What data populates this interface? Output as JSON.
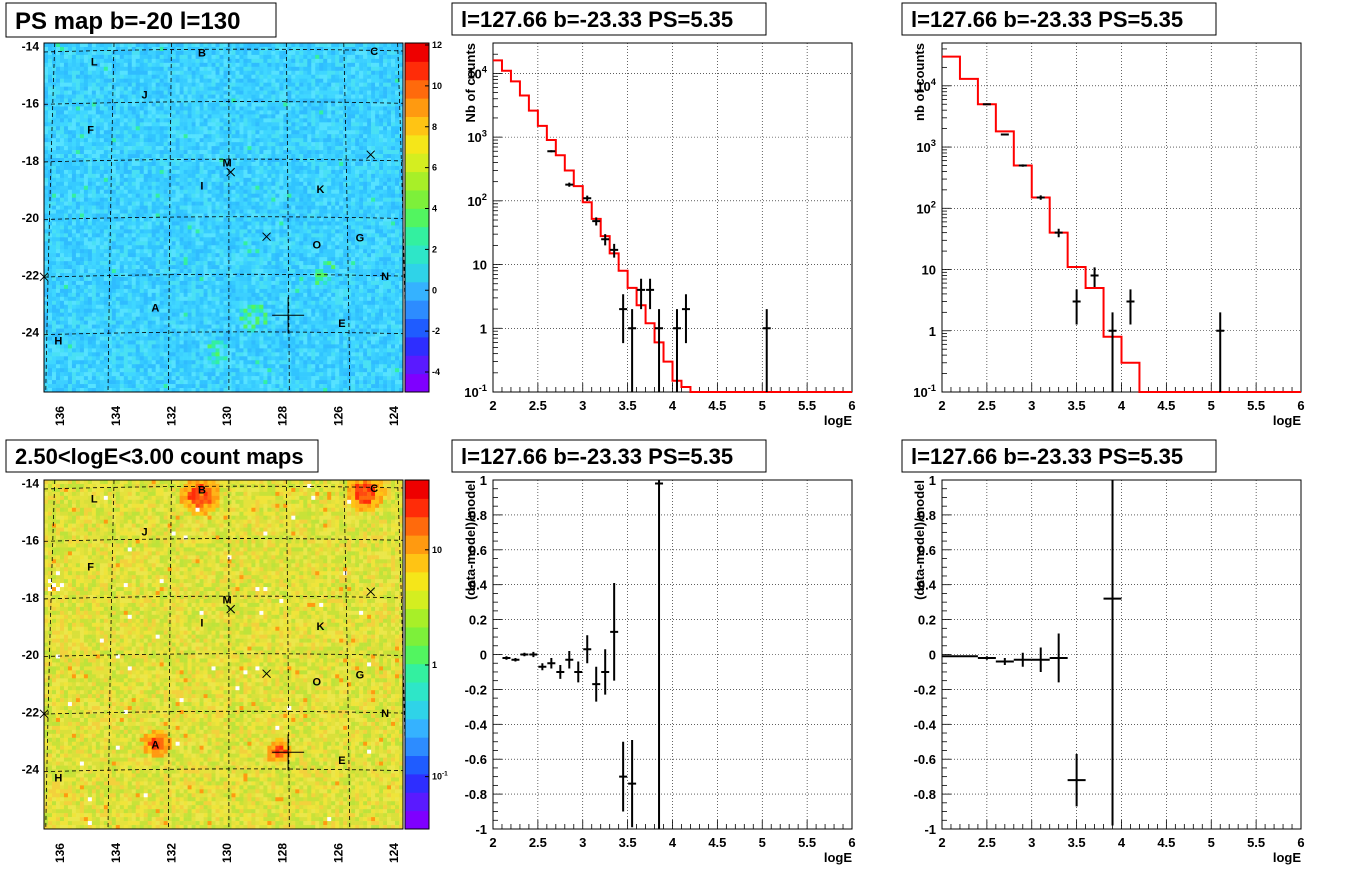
{
  "chart_data": [
    {
      "type": "heatmap",
      "title": "PS map b=-20 l=130",
      "xticks": [
        "136",
        "134",
        "132",
        "130",
        "128",
        "126",
        "124"
      ],
      "yticks": [
        "-14",
        "-16",
        "-18",
        "-20",
        "-22",
        "-24"
      ],
      "colorbar_ticks": [
        "12",
        "10",
        "8",
        "6",
        "4",
        "2",
        "0",
        "-2",
        "-4"
      ],
      "colorbar_colors": [
        "#7f00ff",
        "#5a1aff",
        "#2e2eff",
        "#1f5cff",
        "#2d8cff",
        "#35b2ff",
        "#2fd3e8",
        "#2ee6c8",
        "#33f0a0",
        "#52f560",
        "#7df03a",
        "#a8ef28",
        "#d4ee20",
        "#f5e619",
        "#ffc414",
        "#ff9a10",
        "#ff6a0c",
        "#ff2c08",
        "#ee0000"
      ],
      "base_color": "#3fd7ff",
      "labels": [
        "L",
        "B",
        "C",
        "J",
        "F",
        "M",
        "I",
        "K",
        "O",
        "G",
        "N",
        "A",
        "E",
        "H"
      ],
      "markers": [
        "x",
        "x",
        "x",
        "+"
      ]
    },
    {
      "type": "line",
      "title": "l=127.66 b=-23.33 PS=5.35",
      "xlabel": "logE",
      "ylabel": "Nb of counts",
      "yscale": "log",
      "xlim": [
        2,
        6
      ],
      "ylim": [
        0.1,
        30000
      ],
      "xticks": [
        "2",
        "2.5",
        "3",
        "3.5",
        "4",
        "4.5",
        "5",
        "5.5",
        "6"
      ],
      "yticks": [
        "10^4",
        "10^3",
        "10^2",
        "10",
        "1",
        "10^-1"
      ],
      "grid": true,
      "series": [
        {
          "style": "step",
          "color": "#ff0000",
          "bin_width": 0.1,
          "x": [
            2.0,
            2.1,
            2.2,
            2.3,
            2.4,
            2.5,
            2.6,
            2.7,
            2.8,
            2.9,
            3.0,
            3.1,
            3.2,
            3.3,
            3.4,
            3.5,
            3.6,
            3.7,
            3.8,
            3.9,
            4.0,
            4.1,
            4.2
          ],
          "values": [
            16000,
            11000,
            7500,
            4500,
            2600,
            1500,
            900,
            520,
            300,
            170,
            95,
            52,
            28,
            15,
            8,
            4.3,
            2.3,
            1.2,
            0.6,
            0.3,
            0.15,
            0.12,
            0.1
          ]
        },
        {
          "style": "errorbar",
          "color": "#000000",
          "x": [
            2.65,
            2.85,
            3.05,
            3.15,
            3.25,
            3.35,
            3.45,
            3.55,
            3.65,
            3.75,
            3.85,
            4.05,
            4.15,
            5.05
          ],
          "values": [
            600,
            180,
            110,
            48,
            25,
            17,
            2,
            1,
            4,
            4,
            1,
            1,
            2,
            1
          ]
        }
      ]
    },
    {
      "type": "line",
      "title": "l=127.66 b=-23.33 PS=5.35",
      "xlabel": "logE",
      "ylabel": "nb of counts",
      "yscale": "log",
      "xlim": [
        2,
        6
      ],
      "ylim": [
        0.1,
        50000
      ],
      "xticks": [
        "2",
        "2.5",
        "3",
        "3.5",
        "4",
        "4.5",
        "5",
        "5.5",
        "6"
      ],
      "yticks": [
        "10^4",
        "10^3",
        "10^2",
        "10",
        "1",
        "10^-1"
      ],
      "grid": true,
      "series": [
        {
          "style": "step",
          "color": "#ff0000",
          "bin_width": 0.2,
          "x": [
            2.0,
            2.2,
            2.4,
            2.6,
            2.8,
            3.0,
            3.2,
            3.4,
            3.6,
            3.8,
            4.0,
            4.2
          ],
          "values": [
            30000,
            13000,
            5000,
            1800,
            500,
            150,
            40,
            11,
            5,
            0.8,
            0.3,
            0.1
          ]
        },
        {
          "style": "errorbar",
          "color": "#000000",
          "x": [
            2.5,
            2.7,
            2.9,
            3.1,
            3.3,
            3.5,
            3.7,
            3.9,
            4.1,
            5.1
          ],
          "values": [
            5000,
            1600,
            500,
            150,
            40,
            3,
            8,
            1,
            3,
            1
          ]
        }
      ]
    },
    {
      "type": "heatmap",
      "title": "2.50<logE<3.00 count maps",
      "xticks": [
        "136",
        "134",
        "132",
        "130",
        "128",
        "126",
        "124"
      ],
      "yticks": [
        "-14",
        "-16",
        "-18",
        "-20",
        "-22",
        "-24"
      ],
      "colorbar_ticks": [
        "10",
        "1",
        "10^-1"
      ],
      "colorbar_colors": [
        "#7f00ff",
        "#5a1aff",
        "#2e2eff",
        "#1f5cff",
        "#2d8cff",
        "#35b2ff",
        "#2fd3e8",
        "#2ee6c8",
        "#33f0a0",
        "#52f560",
        "#7df03a",
        "#a8ef28",
        "#d4ee20",
        "#f5e619",
        "#ffc414",
        "#ff9a10",
        "#ff6a0c",
        "#ff2c08",
        "#ee0000"
      ],
      "base_color": "#e5e23c",
      "labels": [
        "L",
        "B",
        "C",
        "J",
        "F",
        "M",
        "I",
        "K",
        "O",
        "G",
        "N",
        "A",
        "E",
        "H"
      ],
      "markers": [
        "x",
        "x",
        "x",
        "+"
      ]
    },
    {
      "type": "scatter",
      "title": "l=127.66 b=-23.33 PS=5.35",
      "xlabel": "logE",
      "ylabel": "(data-model)/model",
      "xlim": [
        2,
        6
      ],
      "ylim": [
        -1,
        1
      ],
      "xticks": [
        "2",
        "2.5",
        "3",
        "3.5",
        "4",
        "4.5",
        "5",
        "5.5",
        "6"
      ],
      "yticks": [
        "1",
        "0.8",
        "0.6",
        "0.4",
        "0.2",
        "0",
        "-0.2",
        "-0.4",
        "-0.6",
        "-0.8",
        "-1"
      ],
      "grid": true,
      "series": [
        {
          "style": "errorbar",
          "color": "#000000",
          "x": [
            2.15,
            2.25,
            2.35,
            2.45,
            2.55,
            2.65,
            2.75,
            2.85,
            2.95,
            3.05,
            3.15,
            3.25,
            3.35,
            3.45,
            3.55,
            3.85
          ],
          "y": [
            -0.02,
            -0.03,
            0.0,
            0.0,
            -0.07,
            -0.05,
            -0.1,
            -0.03,
            -0.1,
            0.03,
            -0.17,
            -0.1,
            0.13,
            -0.7,
            -0.74,
            0.98
          ],
          "err": [
            0.01,
            0.01,
            0.01,
            0.015,
            0.02,
            0.03,
            0.04,
            0.05,
            0.06,
            0.08,
            0.1,
            0.13,
            0.28,
            0.2,
            0.25,
            1.98
          ]
        }
      ]
    },
    {
      "type": "scatter",
      "title": "l=127.66 b=-23.33 PS=5.35",
      "xlabel": "logE",
      "ylabel": "(data-model)/model",
      "xlim": [
        2,
        6
      ],
      "ylim": [
        -1,
        1
      ],
      "xticks": [
        "2",
        "2.5",
        "3",
        "3.5",
        "4",
        "4.5",
        "5",
        "5.5",
        "6"
      ],
      "yticks": [
        "1",
        "0.8",
        "0.6",
        "0.4",
        "0.2",
        "0",
        "-0.2",
        "-0.4",
        "-0.6",
        "-0.8",
        "-1"
      ],
      "grid": true,
      "series": [
        {
          "style": "errorbar",
          "color": "#000000",
          "x": [
            2.1,
            2.3,
            2.5,
            2.7,
            2.9,
            3.1,
            3.3,
            3.5,
            3.9
          ],
          "y": [
            -0.01,
            -0.01,
            -0.02,
            -0.04,
            -0.03,
            -0.03,
            -0.02,
            -0.72,
            0.32
          ],
          "err": [
            0.005,
            0.005,
            0.01,
            0.02,
            0.04,
            0.07,
            0.14,
            0.15,
            1.3
          ]
        }
      ]
    }
  ]
}
